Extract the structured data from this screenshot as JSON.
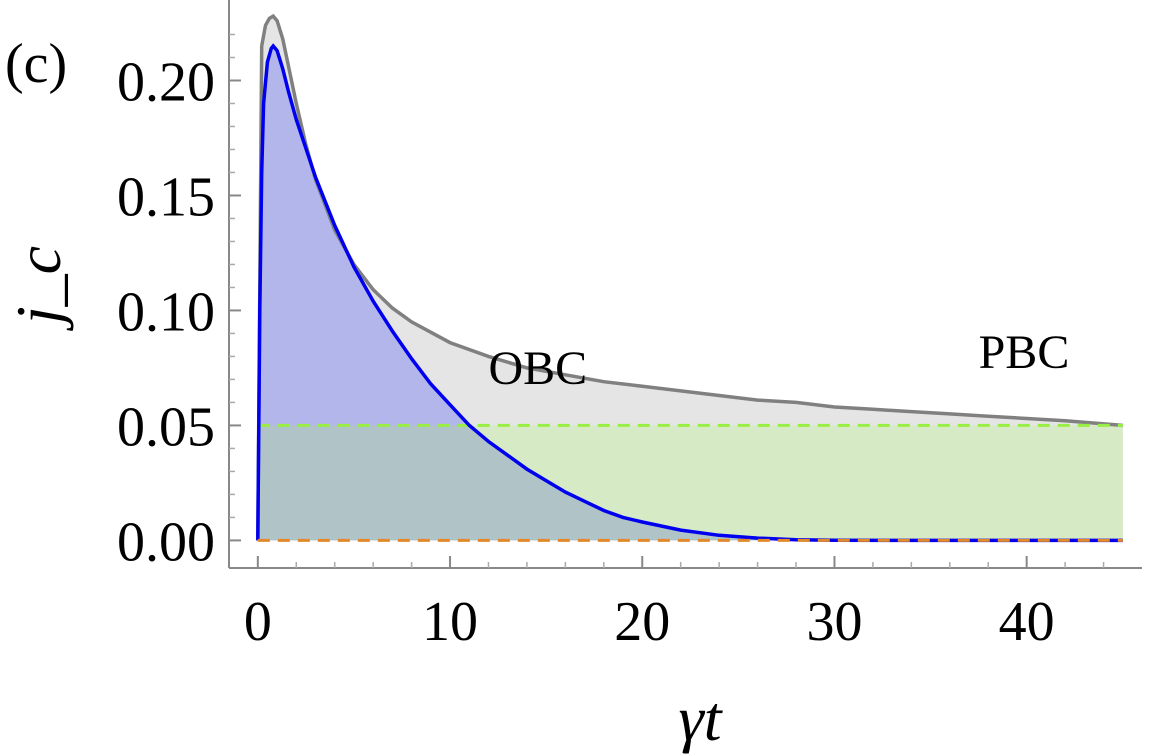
{
  "panel_label": "(c)",
  "chart_data": {
    "type": "area",
    "xlabel": "γt",
    "ylabel": "j_c",
    "xlim": [
      -1.5,
      46
    ],
    "ylim": [
      -0.012,
      0.235
    ],
    "xticks": [
      0,
      10,
      20,
      30,
      40
    ],
    "xtick_labels": [
      "0",
      "10",
      "20",
      "30",
      "40"
    ],
    "yticks": [
      0.0,
      0.05,
      0.1,
      0.15,
      0.2
    ],
    "ytick_labels": [
      "0.00",
      "0.05",
      "0.10",
      "0.15",
      "0.20"
    ],
    "grid": false,
    "series": [
      {
        "name": "PBC",
        "color": "#808080",
        "fill": "#e5e5e5",
        "x": [
          0,
          0.2,
          0.4,
          0.6,
          0.8,
          1,
          1.3,
          1.6,
          2,
          2.5,
          3,
          4,
          5,
          6,
          7,
          8,
          10,
          12,
          14,
          16,
          18,
          20,
          22,
          24,
          26,
          28,
          30,
          32,
          34,
          36,
          38,
          40,
          42,
          45
        ],
        "y": [
          0.0,
          0.215,
          0.224,
          0.227,
          0.228,
          0.226,
          0.218,
          0.206,
          0.19,
          0.172,
          0.157,
          0.135,
          0.12,
          0.109,
          0.101,
          0.095,
          0.086,
          0.08,
          0.075,
          0.072,
          0.069,
          0.067,
          0.065,
          0.063,
          0.061,
          0.06,
          0.058,
          0.057,
          0.056,
          0.055,
          0.054,
          0.053,
          0.052,
          0.05
        ]
      },
      {
        "name": "OBC",
        "color": "#0000ee",
        "fill": "#b3b6ea",
        "x": [
          0,
          0.1,
          0.2,
          0.3,
          0.5,
          0.7,
          0.8,
          1,
          1.3,
          1.6,
          2,
          3,
          4,
          5,
          6,
          7,
          8,
          9,
          10,
          11,
          12,
          13,
          14,
          15,
          16,
          17,
          18,
          19,
          20,
          22,
          24,
          26,
          28,
          30,
          35,
          40,
          45
        ],
        "y": [
          0.0,
          0.1,
          0.16,
          0.19,
          0.208,
          0.214,
          0.215,
          0.213,
          0.205,
          0.195,
          0.183,
          0.158,
          0.137,
          0.119,
          0.104,
          0.091,
          0.079,
          0.068,
          0.059,
          0.05,
          0.043,
          0.037,
          0.031,
          0.026,
          0.021,
          0.017,
          0.013,
          0.01,
          0.008,
          0.0045,
          0.0022,
          0.001,
          0.0003,
          0.0001,
          0.0,
          0.0,
          0.0
        ]
      },
      {
        "name": "",
        "color": "#99ee44",
        "fill": "#d7eac6",
        "dashed": true,
        "x": [
          0,
          45
        ],
        "y": [
          0.05,
          0.05
        ]
      },
      {
        "name": "",
        "color": "#e08a2c",
        "dashed": true,
        "x": [
          0,
          45
        ],
        "y": [
          0.0,
          0.0
        ]
      }
    ],
    "annotations": [
      {
        "text": "OBC",
        "x": 12,
        "y": 0.068
      },
      {
        "text": "PBC",
        "x": 37.5,
        "y": 0.075
      }
    ],
    "overlap_fill": "#b0c4c8"
  }
}
